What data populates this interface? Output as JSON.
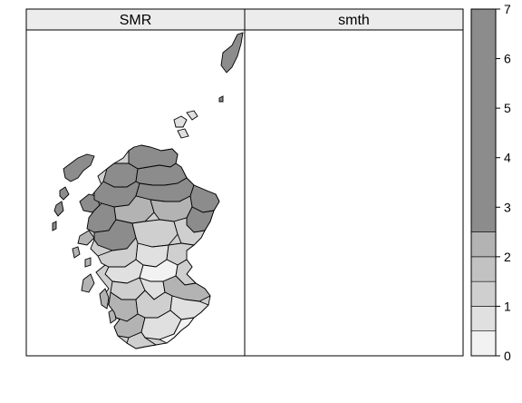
{
  "panels": [
    {
      "title": "SMR"
    },
    {
      "title": "smth"
    }
  ],
  "colorkey": {
    "ticks": [
      "0",
      "1",
      "2",
      "3",
      "4",
      "5",
      "6",
      "7"
    ],
    "bins": [
      {
        "from": 0.0,
        "to": 0.5,
        "color": "#f2f2f2"
      },
      {
        "from": 0.5,
        "to": 1.0,
        "color": "#e0e0e0"
      },
      {
        "from": 1.0,
        "to": 1.5,
        "color": "#cfcfcf"
      },
      {
        "from": 1.5,
        "to": 2.0,
        "color": "#c2c2c2"
      },
      {
        "from": 2.0,
        "to": 2.5,
        "color": "#b3b3b3"
      },
      {
        "from": 2.5,
        "to": 7.0,
        "color": "#8c8c8c"
      }
    ]
  },
  "colors": {
    "strip_bg": "#ececec",
    "frame": "#000000",
    "outline": "#000000"
  }
}
